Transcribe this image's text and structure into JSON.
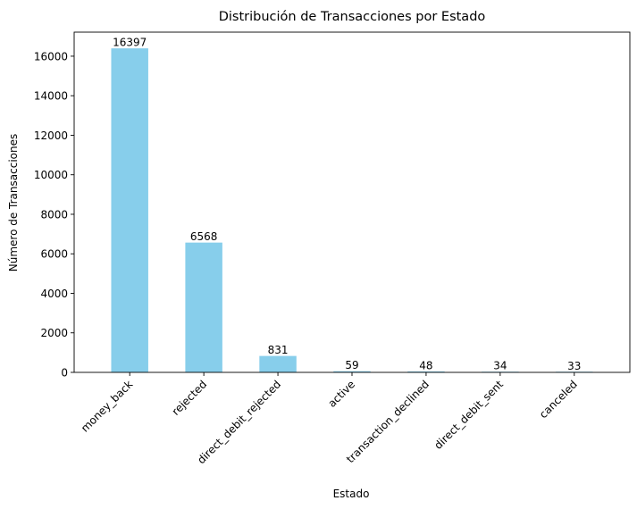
{
  "chart_data": {
    "type": "bar",
    "title": "Distribución de Transacciones por Estado",
    "xlabel": "Estado",
    "ylabel": "Número de Transacciones",
    "categories": [
      "money_back",
      "rejected",
      "direct_debit_rejected",
      "active",
      "transaction_declined",
      "direct_debit_sent",
      "canceled"
    ],
    "values": [
      16397,
      6568,
      831,
      59,
      48,
      34,
      33
    ],
    "data_labels": [
      "16397",
      "6568",
      "831",
      "59",
      "48",
      "34",
      "33"
    ],
    "yticks": [
      0,
      2000,
      4000,
      6000,
      8000,
      10000,
      12000,
      14000,
      16000
    ],
    "ytick_labels": [
      "0",
      "2000",
      "4000",
      "6000",
      "8000",
      "10000",
      "12000",
      "14000",
      "16000"
    ],
    "ylim": [
      0,
      17217
    ],
    "bar_color": "#87ceeb",
    "grid": false,
    "legend": "none"
  }
}
